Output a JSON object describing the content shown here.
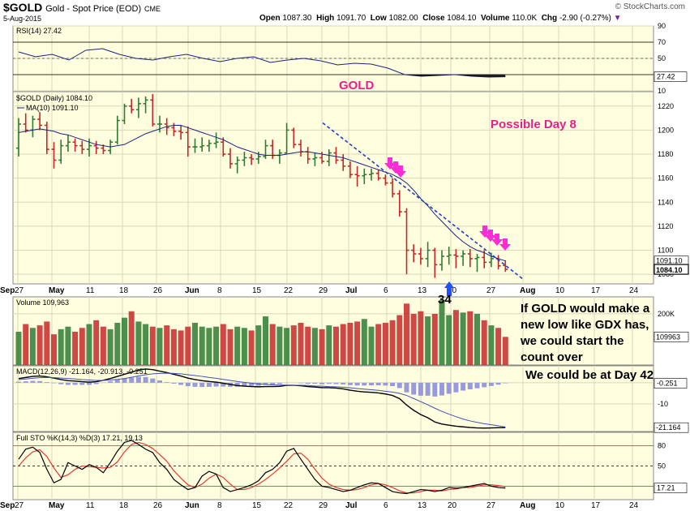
{
  "header": {
    "symbol": "$GOLD",
    "description": "Gold - Spot Price (EOD)",
    "exchange": "CME",
    "date": "5-Aug-2015",
    "open_label": "Open",
    "open": "1087.30",
    "high_label": "High",
    "high": "1091.70",
    "low_label": "Low",
    "low": "1082.00",
    "close_label": "Close",
    "close": "1084.10",
    "volume_label": "Volume",
    "volume": "110.0K",
    "chg_label": "Chg",
    "chg": "-2.90 (-0.27%)",
    "watermark": "© StockCharts.com"
  },
  "colors": {
    "panel_bg": "#ffffe0",
    "up": "#2e7d32",
    "down": "#c62828",
    "ma": "#1a237e",
    "accent": "#e91e8c",
    "trend": "#1e3cc8",
    "macd_hist": "#9999dd",
    "sto_k": "#000000",
    "sto_d": "#e53935",
    "arrow_pink": "#ff2bd6",
    "arrow_blue": "#1e50ff"
  },
  "annotations": {
    "gold": "GOLD",
    "possible_day": "Possible Day 8",
    "new_low": "If GOLD would make a new low like GDX has, we could start the count over",
    "day42": "We could be at Day 42",
    "count34": "34"
  },
  "chart_data": [
    {
      "type": "line",
      "title": "RSI(14) 27.42",
      "series": [
        {
          "name": "RSI(14)",
          "values": [
            58,
            52,
            55,
            48,
            60,
            62,
            55,
            50,
            48,
            52,
            55,
            50,
            46,
            50,
            52,
            45,
            48,
            50,
            47,
            42,
            44,
            43,
            38,
            30,
            28,
            29,
            30,
            28,
            27,
            27.42
          ]
        }
      ],
      "ylim": [
        10,
        90
      ],
      "ticks": [
        90,
        70,
        50,
        30,
        10
      ],
      "last": "27.42",
      "overbought": 70,
      "oversold": 30
    },
    {
      "type": "candlestick",
      "title": "$GOLD (Daily) 1084.10",
      "ma_label": "MA(10) 1091.10",
      "ylim": [
        1072,
        1232
      ],
      "ticks": [
        1220,
        1200,
        1180,
        1160,
        1140,
        1120,
        1100,
        1080
      ],
      "last_labels": [
        "1091.10",
        "1084.10"
      ],
      "x_labels": [
        "27",
        "May",
        "11",
        "18",
        "26",
        "Jun",
        "8",
        "15",
        "22",
        "29",
        "Jul",
        "6",
        "13",
        "20",
        "27",
        "Aug",
        "10",
        "17",
        "24",
        "Sep"
      ],
      "ohlc": [
        [
          1185,
          1210,
          1178,
          1205
        ],
        [
          1205,
          1214,
          1198,
          1200
        ],
        [
          1200,
          1212,
          1194,
          1209
        ],
        [
          1209,
          1215,
          1200,
          1204
        ],
        [
          1204,
          1207,
          1180,
          1184
        ],
        [
          1184,
          1190,
          1168,
          1175
        ],
        [
          1175,
          1192,
          1172,
          1187
        ],
        [
          1187,
          1196,
          1182,
          1190
        ],
        [
          1190,
          1193,
          1182,
          1187
        ],
        [
          1187,
          1191,
          1180,
          1184
        ],
        [
          1184,
          1193,
          1178,
          1187
        ],
        [
          1187,
          1191,
          1180,
          1185
        ],
        [
          1185,
          1188,
          1180,
          1183
        ],
        [
          1183,
          1192,
          1180,
          1190
        ],
        [
          1190,
          1212,
          1188,
          1208
        ],
        [
          1208,
          1222,
          1205,
          1220
        ],
        [
          1220,
          1226,
          1214,
          1217
        ],
        [
          1217,
          1227,
          1210,
          1222
        ],
        [
          1222,
          1228,
          1214,
          1225
        ],
        [
          1225,
          1230,
          1203,
          1205
        ],
        [
          1205,
          1212,
          1198,
          1205
        ],
        [
          1205,
          1210,
          1196,
          1202
        ],
        [
          1202,
          1206,
          1195,
          1199
        ],
        [
          1199,
          1204,
          1192,
          1198
        ],
        [
          1198,
          1203,
          1178,
          1186
        ],
        [
          1186,
          1193,
          1181,
          1186
        ],
        [
          1186,
          1194,
          1182,
          1187
        ],
        [
          1187,
          1192,
          1182,
          1189
        ],
        [
          1189,
          1198,
          1185,
          1190
        ],
        [
          1190,
          1194,
          1178,
          1180
        ],
        [
          1180,
          1185,
          1168,
          1172
        ],
        [
          1172,
          1178,
          1164,
          1175
        ],
        [
          1175,
          1182,
          1170,
          1177
        ],
        [
          1177,
          1180,
          1171,
          1176
        ],
        [
          1176,
          1182,
          1172,
          1178
        ],
        [
          1178,
          1192,
          1176,
          1187
        ],
        [
          1187,
          1192,
          1176,
          1179
        ],
        [
          1179,
          1184,
          1172,
          1181
        ],
        [
          1181,
          1206,
          1180,
          1200
        ],
        [
          1200,
          1202,
          1185,
          1188
        ],
        [
          1188,
          1192,
          1178,
          1182
        ],
        [
          1182,
          1186,
          1172,
          1176
        ],
        [
          1176,
          1181,
          1170,
          1177
        ],
        [
          1177,
          1182,
          1172,
          1174
        ],
        [
          1174,
          1184,
          1170,
          1181
        ],
        [
          1181,
          1186,
          1172,
          1175
        ],
        [
          1175,
          1180,
          1166,
          1170
        ],
        [
          1170,
          1174,
          1160,
          1163
        ],
        [
          1163,
          1170,
          1153,
          1162
        ],
        [
          1162,
          1168,
          1155,
          1163
        ],
        [
          1163,
          1168,
          1158,
          1164
        ],
        [
          1164,
          1167,
          1158,
          1160
        ],
        [
          1160,
          1163,
          1154,
          1156
        ],
        [
          1156,
          1160,
          1144,
          1147
        ],
        [
          1147,
          1150,
          1128,
          1132
        ],
        [
          1132,
          1135,
          1080,
          1100
        ],
        [
          1100,
          1105,
          1090,
          1097
        ],
        [
          1097,
          1102,
          1088,
          1093
        ],
        [
          1093,
          1107,
          1086,
          1100
        ],
        [
          1100,
          1102,
          1077,
          1088
        ],
        [
          1088,
          1100,
          1083,
          1095
        ],
        [
          1095,
          1103,
          1088,
          1096
        ],
        [
          1096,
          1101,
          1085,
          1095
        ],
        [
          1095,
          1100,
          1087,
          1097
        ],
        [
          1097,
          1101,
          1086,
          1093
        ],
        [
          1093,
          1097,
          1082,
          1094
        ],
        [
          1094,
          1100,
          1085,
          1090
        ],
        [
          1090,
          1098,
          1086,
          1093
        ],
        [
          1093,
          1096,
          1084,
          1087
        ],
        [
          1087.3,
          1091.7,
          1082,
          1084.1
        ]
      ],
      "ma": [
        1198,
        1199,
        1200,
        1201,
        1200,
        1199,
        1197,
        1196,
        1194,
        1192,
        1190,
        1188,
        1187,
        1186,
        1187,
        1188,
        1191,
        1194,
        1197,
        1199,
        1201,
        1203,
        1204,
        1204,
        1202,
        1200,
        1198,
        1196,
        1194,
        1192,
        1189,
        1186,
        1184,
        1182,
        1180,
        1179,
        1179,
        1179,
        1180,
        1181,
        1182,
        1182,
        1181,
        1180,
        1179,
        1178,
        1177,
        1175,
        1173,
        1171,
        1169,
        1167,
        1165,
        1163,
        1160,
        1156,
        1150,
        1143,
        1137,
        1130,
        1124,
        1118,
        1112,
        1107,
        1103,
        1100,
        1098,
        1095,
        1093,
        1091.1
      ]
    },
    {
      "type": "bar",
      "title": "Volume 109,963",
      "ticks_label": "200K",
      "last": "109963",
      "values": [
        130,
        160,
        145,
        155,
        170,
        120,
        140,
        150,
        130,
        145,
        160,
        175,
        150,
        140,
        165,
        185,
        210,
        170,
        160,
        150,
        145,
        155,
        140,
        135,
        150,
        165,
        150,
        145,
        150,
        160,
        140,
        150,
        145,
        135,
        155,
        190,
        160,
        150,
        145,
        155,
        165,
        150,
        145,
        140,
        155,
        150,
        160,
        165,
        170,
        180,
        150,
        160,
        165,
        175,
        195,
        240,
        200,
        210,
        190,
        200,
        255,
        195,
        215,
        205,
        210,
        200,
        175,
        155,
        145,
        110
      ]
    },
    {
      "type": "line",
      "title": "MACD(12,26,9) -21.164, -20.913, -0.251",
      "series": [
        {
          "name": "MACD",
          "values": [
            2,
            2.5,
            3,
            3.2,
            2.8,
            2.2,
            1.5,
            1,
            0.8,
            0.5,
            0.3,
            0.5,
            1.2,
            2,
            3,
            4,
            5,
            6,
            6.5,
            6.2,
            5.5,
            4.8,
            4,
            3.2,
            2.2,
            1.5,
            1,
            0.6,
            0.3,
            -0.2,
            -0.8,
            -1.3,
            -1.6,
            -1.8,
            -1.9,
            -1.8,
            -1.8,
            -1.7,
            -1.2,
            -1.2,
            -1.4,
            -1.8,
            -2,
            -2.3,
            -2.3,
            -2.5,
            -2.9,
            -3.5,
            -4,
            -4.3,
            -4.5,
            -4.8,
            -5.3,
            -6,
            -7.5,
            -10.5,
            -13,
            -15,
            -16.5,
            -18.5,
            -19.5,
            -20,
            -20.5,
            -20.8,
            -21.1,
            -21.3,
            -21.4,
            -21.3,
            -21.2,
            -21.164
          ]
        },
        {
          "name": "Signal",
          "values": [
            1.5,
            1.8,
            2.1,
            2.4,
            2.5,
            2.4,
            2.2,
            2,
            1.8,
            1.5,
            1.3,
            1.1,
            1.1,
            1.3,
            1.6,
            2,
            2.6,
            3.2,
            3.8,
            4.2,
            4.4,
            4.5,
            4.4,
            4.2,
            3.8,
            3.4,
            3,
            2.5,
            2.1,
            1.6,
            1.1,
            0.6,
            0.2,
            -0.2,
            -0.5,
            -0.8,
            -1,
            -1.1,
            -1.1,
            -1.2,
            -1.2,
            -1.3,
            -1.5,
            -1.6,
            -1.8,
            -1.9,
            -2.1,
            -2.4,
            -2.7,
            -3,
            -3.3,
            -3.6,
            -4,
            -4.4,
            -5,
            -6,
            -7.4,
            -8.9,
            -10.4,
            -12,
            -13.5,
            -14.8,
            -16,
            -17.1,
            -18,
            -18.7,
            -19.3,
            -19.8,
            -20.3,
            -20.913
          ]
        }
      ],
      "hist": [
        0.5,
        0.7,
        0.9,
        0.8,
        0.3,
        -0.2,
        -0.7,
        -1,
        -1,
        -1,
        -1,
        -0.6,
        0.1,
        0.7,
        1.4,
        2,
        2.4,
        2.8,
        2.7,
        2,
        1.1,
        0.3,
        -0.4,
        -1,
        -1.6,
        -1.9,
        -2,
        -1.9,
        -1.8,
        -1.8,
        -1.9,
        -1.9,
        -1.8,
        -1.6,
        -1.4,
        -1,
        -0.8,
        -0.6,
        -0.1,
        0,
        -0.2,
        -0.5,
        -0.5,
        -0.7,
        -0.5,
        -0.6,
        -0.8,
        -1.1,
        -1.3,
        -1.3,
        -1.2,
        -1.2,
        -1.3,
        -1.6,
        -2.5,
        -4.5,
        -5.6,
        -6.1,
        -6.1,
        -6.5,
        -6,
        -5.2,
        -4.5,
        -3.7,
        -3.1,
        -2.6,
        -2.1,
        -1.5,
        -0.9,
        -0.251
      ],
      "ylim": [
        -23,
        8
      ],
      "ticks": [
        "0.00",
        "-10"
      ],
      "last_labels": [
        "-0.251",
        "-21.164"
      ]
    },
    {
      "type": "line",
      "title": "Full STO %K(14,3) %D(3) 17.21, 19.13",
      "series": [
        {
          "name": "%K",
          "values": [
            60,
            75,
            78,
            70,
            45,
            25,
            30,
            55,
            50,
            45,
            52,
            48,
            40,
            55,
            72,
            85,
            88,
            82,
            75,
            70,
            55,
            45,
            30,
            22,
            15,
            18,
            35,
            42,
            38,
            18,
            12,
            15,
            18,
            22,
            28,
            40,
            45,
            55,
            72,
            76,
            60,
            45,
            30,
            20,
            18,
            15,
            12,
            14,
            18,
            22,
            25,
            24,
            18,
            12,
            10,
            9,
            12,
            15,
            14,
            12,
            14,
            18,
            17,
            18,
            20,
            22,
            24,
            20,
            18,
            17.21
          ]
        },
        {
          "name": "%D",
          "values": [
            50,
            62,
            71,
            74,
            64,
            47,
            33,
            37,
            45,
            50,
            49,
            48,
            47,
            48,
            56,
            71,
            82,
            85,
            82,
            76,
            67,
            57,
            43,
            32,
            22,
            18,
            23,
            32,
            38,
            33,
            23,
            15,
            15,
            18,
            23,
            30,
            38,
            47,
            57,
            68,
            69,
            60,
            45,
            32,
            23,
            18,
            15,
            14,
            15,
            18,
            22,
            24,
            22,
            18,
            13,
            10,
            10,
            12,
            14,
            14,
            13,
            15,
            16,
            18,
            18,
            20,
            22,
            22,
            21,
            19.13
          ]
        }
      ],
      "ylim": [
        0,
        100
      ],
      "ticks": [
        80,
        50,
        20
      ],
      "last": "17.21"
    }
  ]
}
